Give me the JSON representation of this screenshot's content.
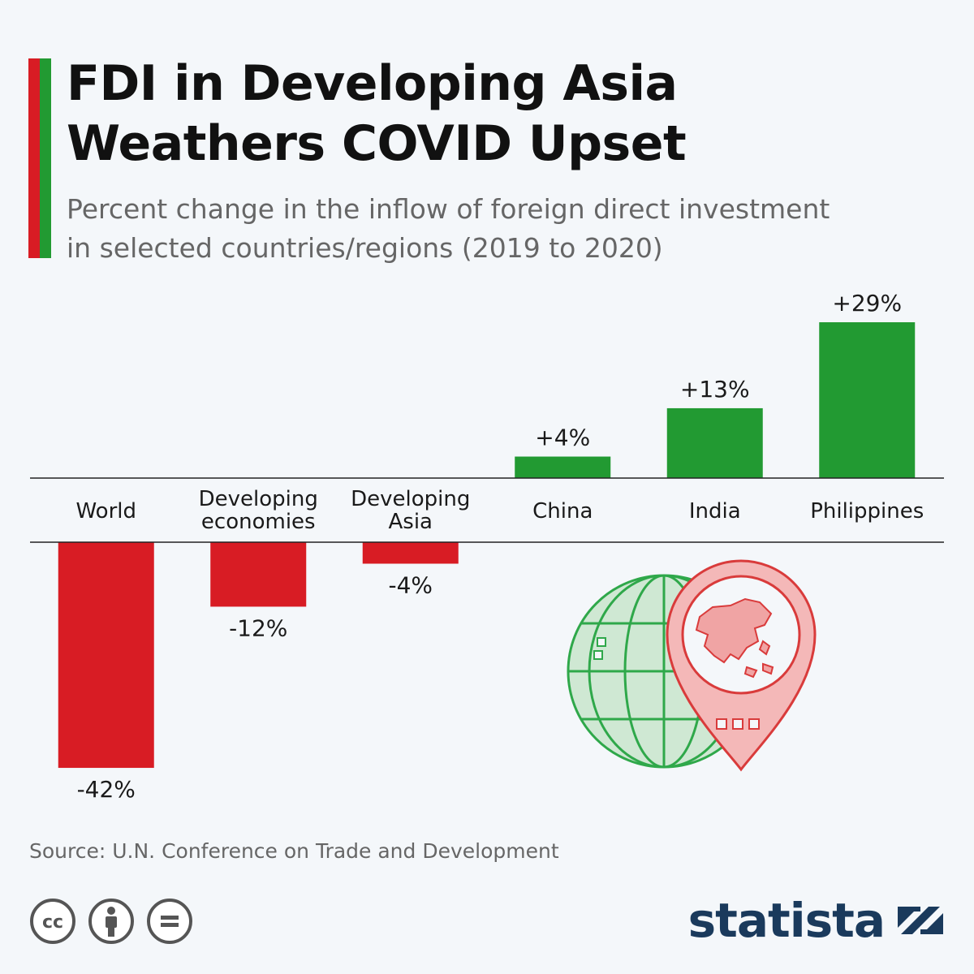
{
  "title_lines": [
    "FDI in Developing Asia",
    "Weathers COVID Upset"
  ],
  "subtitle_lines": [
    "Percent change in the inflow of foreign direct investment",
    "in selected countries/regions (2019 to 2020)"
  ],
  "source": "Source: U.N. Conference on Trade and Development",
  "brand": "statista",
  "colors": {
    "positive": "#229a32",
    "negative": "#d81c24",
    "accent_red": "#d81c24",
    "accent_green": "#229a32",
    "icon_green": "#2fa84a",
    "icon_red": "#d93b3b",
    "brand": "#1a3a5c"
  },
  "icons": {
    "illustration": "globe-with-asia-map-pin-icon",
    "license": [
      "cc-icon",
      "attribution-icon",
      "no-derivatives-icon"
    ],
    "brand_logo": "statista-logo-icon"
  },
  "chart_data": {
    "type": "bar",
    "categories": [
      [
        "World"
      ],
      [
        "Developing",
        "economies"
      ],
      [
        "Developing",
        "Asia"
      ],
      [
        "China"
      ],
      [
        "India"
      ],
      [
        "Philippines"
      ]
    ],
    "values": [
      -42,
      -12,
      -4,
      4,
      13,
      29
    ],
    "value_labels": [
      "-42%",
      "-12%",
      "-4%",
      "+4%",
      "+13%",
      "+29%"
    ],
    "unit": "%",
    "grid": false,
    "legend": "none"
  }
}
